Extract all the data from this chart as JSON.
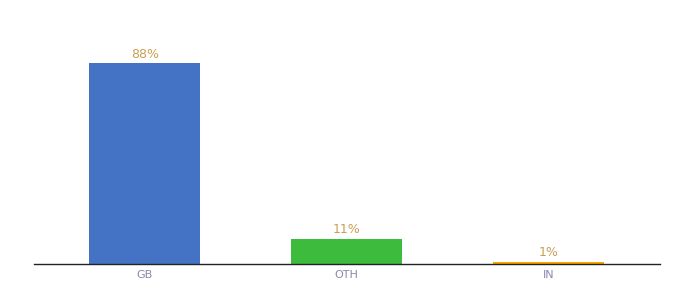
{
  "categories": [
    "GB",
    "OTH",
    "IN"
  ],
  "values": [
    88,
    11,
    1
  ],
  "bar_colors": [
    "#4472C4",
    "#3DBB3D",
    "#FFA500"
  ],
  "label_color": "#C8A055",
  "labels": [
    "88%",
    "11%",
    "1%"
  ],
  "ylim": [
    0,
    100
  ],
  "background_color": "#ffffff",
  "label_fontsize": 9,
  "tick_fontsize": 8,
  "tick_color": "#8888aa",
  "bar_width": 0.55,
  "x_positions": [
    0,
    1,
    2
  ],
  "xlim_left": -0.55,
  "xlim_right": 2.55
}
